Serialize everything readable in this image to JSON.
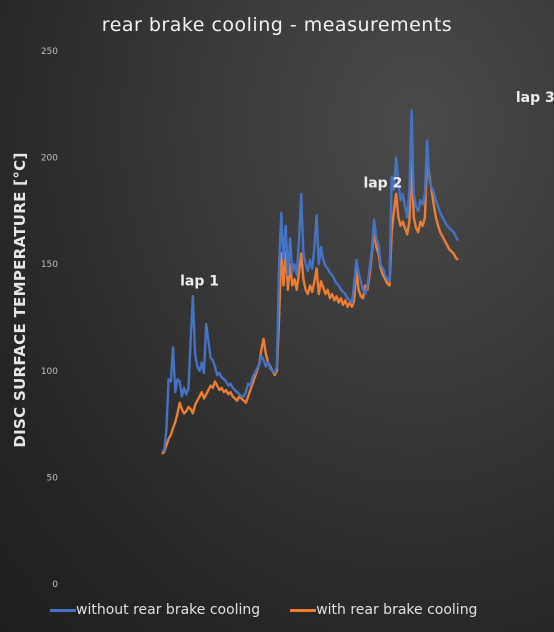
{
  "chart_data": {
    "type": "line",
    "title": "rear brake cooling - measurements",
    "ylabel": "DISC SURFACE TEMPERATURE [°C]",
    "xlabel": "",
    "ylim": [
      0,
      250
    ],
    "yticks": [
      "0",
      "50",
      "100",
      "150",
      "200",
      "250"
    ],
    "grid": false,
    "legend_position": "bottom",
    "annotations": [
      {
        "text": "lap 1",
        "x": 17,
        "y": 140
      },
      {
        "text": "lap 2",
        "x": 100,
        "y": 186
      },
      {
        "text": "lap 3",
        "x": 169,
        "y": 226
      }
    ],
    "series": [
      {
        "name": "without rear brake cooling",
        "color": "#4472C4",
        "points": [
          [
            0,
            62
          ],
          [
            1,
            63
          ],
          [
            2,
            72
          ],
          [
            3,
            96
          ],
          [
            4,
            95
          ],
          [
            5,
            111
          ],
          [
            6,
            90
          ],
          [
            7,
            96
          ],
          [
            8,
            95
          ],
          [
            9,
            88
          ],
          [
            10,
            92
          ],
          [
            11,
            89
          ],
          [
            12,
            92
          ],
          [
            13,
            115
          ],
          [
            14,
            135
          ],
          [
            15,
            108
          ],
          [
            16,
            102
          ],
          [
            17,
            100
          ],
          [
            18,
            104
          ],
          [
            19,
            99
          ],
          [
            20,
            122
          ],
          [
            21,
            114
          ],
          [
            22,
            106
          ],
          [
            23,
            105
          ],
          [
            24,
            102
          ],
          [
            25,
            98
          ],
          [
            26,
            99
          ],
          [
            27,
            97
          ],
          [
            28,
            96
          ],
          [
            29,
            95
          ],
          [
            30,
            93
          ],
          [
            31,
            94
          ],
          [
            32,
            92
          ],
          [
            33,
            91
          ],
          [
            34,
            90
          ],
          [
            35,
            89
          ],
          [
            36,
            88
          ],
          [
            37,
            88
          ],
          [
            38,
            90
          ],
          [
            39,
            94
          ],
          [
            40,
            93
          ],
          [
            41,
            97
          ],
          [
            42,
            99
          ],
          [
            43,
            101
          ],
          [
            44,
            103
          ],
          [
            45,
            107
          ],
          [
            46,
            105
          ],
          [
            47,
            102
          ],
          [
            48,
            104
          ],
          [
            49,
            101
          ],
          [
            50,
            100
          ],
          [
            51,
            99
          ],
          [
            52,
            102
          ],
          [
            53,
            150
          ],
          [
            54,
            174
          ],
          [
            55,
            152
          ],
          [
            56,
            168
          ],
          [
            57,
            145
          ],
          [
            58,
            162
          ],
          [
            59,
            146
          ],
          [
            60,
            150
          ],
          [
            61,
            145
          ],
          [
            62,
            161
          ],
          [
            63,
            183
          ],
          [
            64,
            155
          ],
          [
            65,
            150
          ],
          [
            66,
            147
          ],
          [
            67,
            152
          ],
          [
            68,
            148
          ],
          [
            69,
            158
          ],
          [
            70,
            173
          ],
          [
            71,
            150
          ],
          [
            72,
            158
          ],
          [
            73,
            152
          ],
          [
            74,
            149
          ],
          [
            75,
            148
          ],
          [
            76,
            146
          ],
          [
            77,
            145
          ],
          [
            78,
            143
          ],
          [
            79,
            141
          ],
          [
            80,
            140
          ],
          [
            81,
            138
          ],
          [
            82,
            137
          ],
          [
            83,
            136
          ],
          [
            84,
            134
          ],
          [
            85,
            133
          ],
          [
            86,
            132
          ],
          [
            87,
            141
          ],
          [
            88,
            152
          ],
          [
            89,
            146
          ],
          [
            90,
            142
          ],
          [
            91,
            138
          ],
          [
            92,
            136
          ],
          [
            93,
            140
          ],
          [
            94,
            148
          ],
          [
            95,
            157
          ],
          [
            96,
            171
          ],
          [
            97,
            162
          ],
          [
            98,
            159
          ],
          [
            99,
            150
          ],
          [
            100,
            148
          ],
          [
            101,
            145
          ],
          [
            102,
            143
          ],
          [
            103,
            142
          ],
          [
            104,
            191
          ],
          [
            105,
            185
          ],
          [
            106,
            200
          ],
          [
            107,
            188
          ],
          [
            108,
            180
          ],
          [
            109,
            183
          ],
          [
            110,
            177
          ],
          [
            111,
            172
          ],
          [
            112,
            185
          ],
          [
            113,
            222
          ],
          [
            114,
            183
          ],
          [
            115,
            177
          ],
          [
            116,
            175
          ],
          [
            117,
            180
          ],
          [
            118,
            178
          ],
          [
            119,
            183
          ],
          [
            120,
            208
          ],
          [
            121,
            190
          ],
          [
            122,
            186
          ],
          [
            123,
            184
          ],
          [
            124,
            180
          ],
          [
            125,
            177
          ],
          [
            126,
            174
          ],
          [
            127,
            172
          ],
          [
            128,
            170
          ],
          [
            129,
            168
          ],
          [
            130,
            167
          ],
          [
            131,
            166
          ],
          [
            132,
            165
          ],
          [
            133,
            163
          ],
          [
            134,
            161
          ]
        ]
      },
      {
        "name": "with rear brake cooling",
        "color": "#ED7D31",
        "points": [
          [
            0,
            61
          ],
          [
            1,
            62
          ],
          [
            2,
            65
          ],
          [
            3,
            68
          ],
          [
            4,
            70
          ],
          [
            5,
            73
          ],
          [
            6,
            76
          ],
          [
            7,
            80
          ],
          [
            8,
            85
          ],
          [
            9,
            82
          ],
          [
            10,
            80
          ],
          [
            11,
            81
          ],
          [
            12,
            83
          ],
          [
            13,
            82
          ],
          [
            14,
            80
          ],
          [
            15,
            84
          ],
          [
            16,
            86
          ],
          [
            17,
            88
          ],
          [
            18,
            90
          ],
          [
            19,
            87
          ],
          [
            20,
            89
          ],
          [
            21,
            91
          ],
          [
            22,
            93
          ],
          [
            23,
            92
          ],
          [
            24,
            95
          ],
          [
            25,
            93
          ],
          [
            26,
            91
          ],
          [
            27,
            92
          ],
          [
            28,
            90
          ],
          [
            29,
            91
          ],
          [
            30,
            89
          ],
          [
            31,
            90
          ],
          [
            32,
            88
          ],
          [
            33,
            87
          ],
          [
            34,
            86
          ],
          [
            35,
            88
          ],
          [
            36,
            87
          ],
          [
            37,
            86
          ],
          [
            38,
            85
          ],
          [
            39,
            88
          ],
          [
            40,
            91
          ],
          [
            41,
            94
          ],
          [
            42,
            97
          ],
          [
            43,
            100
          ],
          [
            44,
            103
          ],
          [
            45,
            110
          ],
          [
            46,
            115
          ],
          [
            47,
            108
          ],
          [
            48,
            104
          ],
          [
            49,
            102
          ],
          [
            50,
            100
          ],
          [
            51,
            98
          ],
          [
            52,
            100
          ],
          [
            53,
            125
          ],
          [
            54,
            155
          ],
          [
            55,
            140
          ],
          [
            56,
            156
          ],
          [
            57,
            138
          ],
          [
            58,
            150
          ],
          [
            59,
            140
          ],
          [
            60,
            143
          ],
          [
            61,
            138
          ],
          [
            62,
            146
          ],
          [
            63,
            155
          ],
          [
            64,
            143
          ],
          [
            65,
            138
          ],
          [
            66,
            136
          ],
          [
            67,
            140
          ],
          [
            68,
            137
          ],
          [
            69,
            142
          ],
          [
            70,
            148
          ],
          [
            71,
            136
          ],
          [
            72,
            142
          ],
          [
            73,
            139
          ],
          [
            74,
            136
          ],
          [
            75,
            138
          ],
          [
            76,
            134
          ],
          [
            77,
            136
          ],
          [
            78,
            133
          ],
          [
            79,
            135
          ],
          [
            80,
            132
          ],
          [
            81,
            134
          ],
          [
            82,
            131
          ],
          [
            83,
            133
          ],
          [
            84,
            130
          ],
          [
            85,
            132
          ],
          [
            86,
            130
          ],
          [
            87,
            133
          ],
          [
            88,
            148
          ],
          [
            89,
            138
          ],
          [
            90,
            135
          ],
          [
            91,
            134
          ],
          [
            92,
            140
          ],
          [
            93,
            138
          ],
          [
            94,
            145
          ],
          [
            95,
            155
          ],
          [
            96,
            166
          ],
          [
            97,
            158
          ],
          [
            98,
            155
          ],
          [
            99,
            148
          ],
          [
            100,
            145
          ],
          [
            101,
            143
          ],
          [
            102,
            141
          ],
          [
            103,
            140
          ],
          [
            104,
            165
          ],
          [
            105,
            175
          ],
          [
            106,
            183
          ],
          [
            107,
            172
          ],
          [
            108,
            168
          ],
          [
            109,
            170
          ],
          [
            110,
            167
          ],
          [
            111,
            164
          ],
          [
            112,
            170
          ],
          [
            113,
            198
          ],
          [
            114,
            172
          ],
          [
            115,
            167
          ],
          [
            116,
            165
          ],
          [
            117,
            170
          ],
          [
            118,
            168
          ],
          [
            119,
            172
          ],
          [
            120,
            200
          ],
          [
            121,
            192
          ],
          [
            122,
            185
          ],
          [
            123,
            178
          ],
          [
            124,
            172
          ],
          [
            125,
            168
          ],
          [
            126,
            165
          ],
          [
            127,
            163
          ],
          [
            128,
            161
          ],
          [
            129,
            159
          ],
          [
            130,
            157
          ],
          [
            131,
            156
          ],
          [
            132,
            155
          ],
          [
            133,
            153
          ],
          [
            134,
            152
          ]
        ]
      }
    ]
  }
}
